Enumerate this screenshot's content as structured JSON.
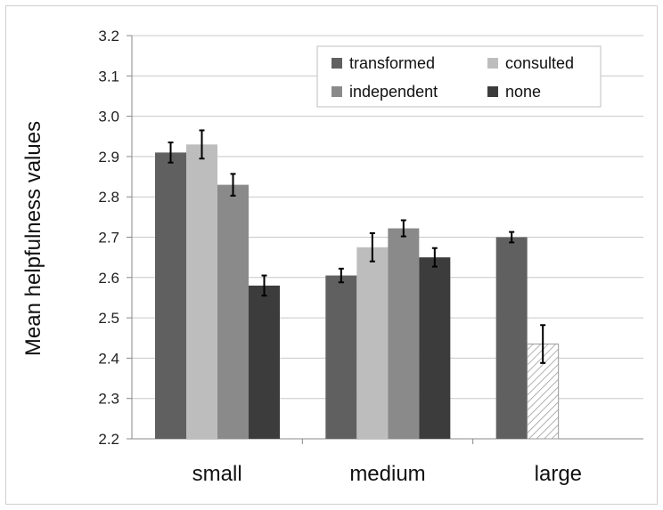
{
  "chart_data": {
    "type": "bar",
    "categories": [
      "small",
      "medium",
      "large"
    ],
    "ylabel": "Mean helpfulness values",
    "ylim": [
      2.2,
      3.2
    ],
    "yticks": [
      "2.2",
      "2.3",
      "2.4",
      "2.5",
      "2.6",
      "2.7",
      "2.8",
      "2.9",
      "3.0",
      "3.1",
      "3.2"
    ],
    "grid": true,
    "legend_position": "top-right",
    "series": [
      {
        "name": "transformed",
        "color": "#606060",
        "values": [
          2.91,
          2.605,
          2.7
        ],
        "errors": [
          0.025,
          0.017,
          0.013
        ]
      },
      {
        "name": "consulted",
        "color": "#bdbdbd",
        "values": [
          2.93,
          2.675,
          2.435
        ],
        "errors": [
          0.035,
          0.035,
          0.047
        ],
        "hatched": [
          false,
          false,
          true
        ]
      },
      {
        "name": "independent",
        "color": "#8a8a8a",
        "values": [
          2.83,
          2.722,
          null
        ],
        "errors": [
          0.027,
          0.02,
          null
        ]
      },
      {
        "name": "none",
        "color": "#3c3c3c",
        "values": [
          2.58,
          2.65,
          null
        ],
        "errors": [
          0.025,
          0.023,
          null
        ]
      }
    ]
  }
}
